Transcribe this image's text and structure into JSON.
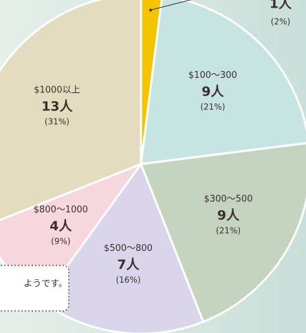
{
  "chart_data": {
    "type": "pie",
    "categories": [
      null,
      "$100～300",
      "$300～500",
      "$500～800",
      "$800～1000",
      "$1000以上"
    ],
    "values": [
      2,
      21,
      21,
      16,
      9,
      31
    ],
    "value_labels": [
      "(2%)",
      "(21%)",
      "(21%)",
      "(16%)",
      "(9%)",
      "(31%)"
    ],
    "counts": [
      1,
      9,
      9,
      7,
      4,
      13
    ],
    "count_labels": [
      "1人",
      "9人",
      "9人",
      "7人",
      "4人",
      "13人"
    ],
    "colors": [
      "#f5c400",
      "#c6e4e1",
      "#c4d4be",
      "#dad5eb",
      "#f6d7dd",
      "#e4dcbe"
    ],
    "note": "ようです。"
  }
}
